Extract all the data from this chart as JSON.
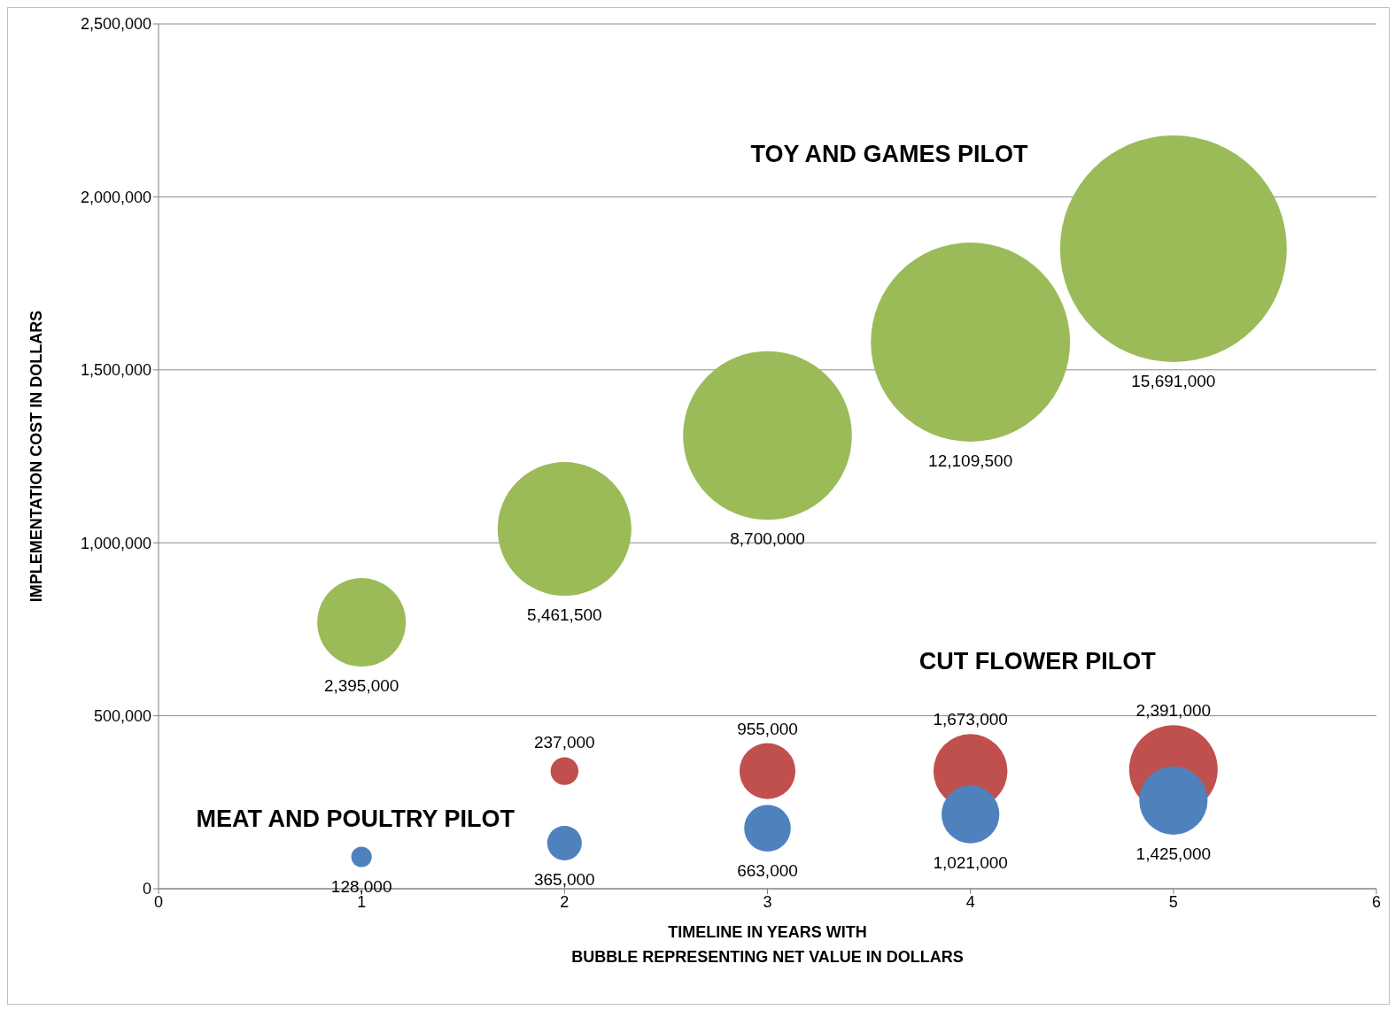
{
  "chart_data": {
    "type": "bubble",
    "xlabel": "TIMELINE IN YEARS WITH\nBUBBLE REPRESENTING NET VALUE IN DOLLARS",
    "ylabel": "IMPLEMENTATION COST IN DOLLARS",
    "xlim": [
      0,
      6
    ],
    "xticks": [
      0,
      1,
      2,
      3,
      4,
      5,
      6
    ],
    "ylim": [
      0,
      2500000
    ],
    "yticks": [
      0,
      {
        "value": 500000,
        "label": "500,000"
      },
      {
        "value": 1000000,
        "label": "1,000,000"
      },
      {
        "value": 1500000,
        "label": "1,500,000"
      },
      {
        "value": 2000000,
        "label": "2,000,000"
      },
      {
        "value": 2500000,
        "label": "2,500,000"
      }
    ],
    "grid": "y",
    "series": [
      {
        "name": "TOY AND GAMES PILOT",
        "color": "#9bbb59",
        "x": [
          1,
          2,
          3,
          4,
          5
        ],
        "values": [
          770000,
          1040000,
          1310000,
          1580000,
          1850000
        ],
        "sizes": [
          2395000,
          5461500,
          8700000,
          12109500,
          15691000
        ],
        "value_labels": [
          "2,395,000",
          "5,461,500",
          "8,700,000",
          "12,109,500",
          "15,691,000"
        ]
      },
      {
        "name": "CUT FLOWER PILOT",
        "color": "#c0504d",
        "x": [
          2,
          3,
          4,
          5
        ],
        "values": [
          340000,
          340000,
          340000,
          345000
        ],
        "sizes": [
          237000,
          955000,
          1673000,
          2391000
        ],
        "value_labels": [
          "237,000",
          "955,000",
          "1,673,000",
          "2,391,000"
        ]
      },
      {
        "name": "MEAT AND POULTRY PILOT",
        "color": "#4f81bd",
        "x": [
          1,
          2,
          3,
          4,
          5
        ],
        "values": [
          92000,
          132000,
          175000,
          215000,
          255000
        ],
        "sizes": [
          128000,
          365000,
          663000,
          1021000,
          1425000
        ],
        "value_labels": [
          "128,000",
          "365,000",
          "663,000",
          "1,021,000",
          "1,425,000"
        ]
      }
    ]
  }
}
